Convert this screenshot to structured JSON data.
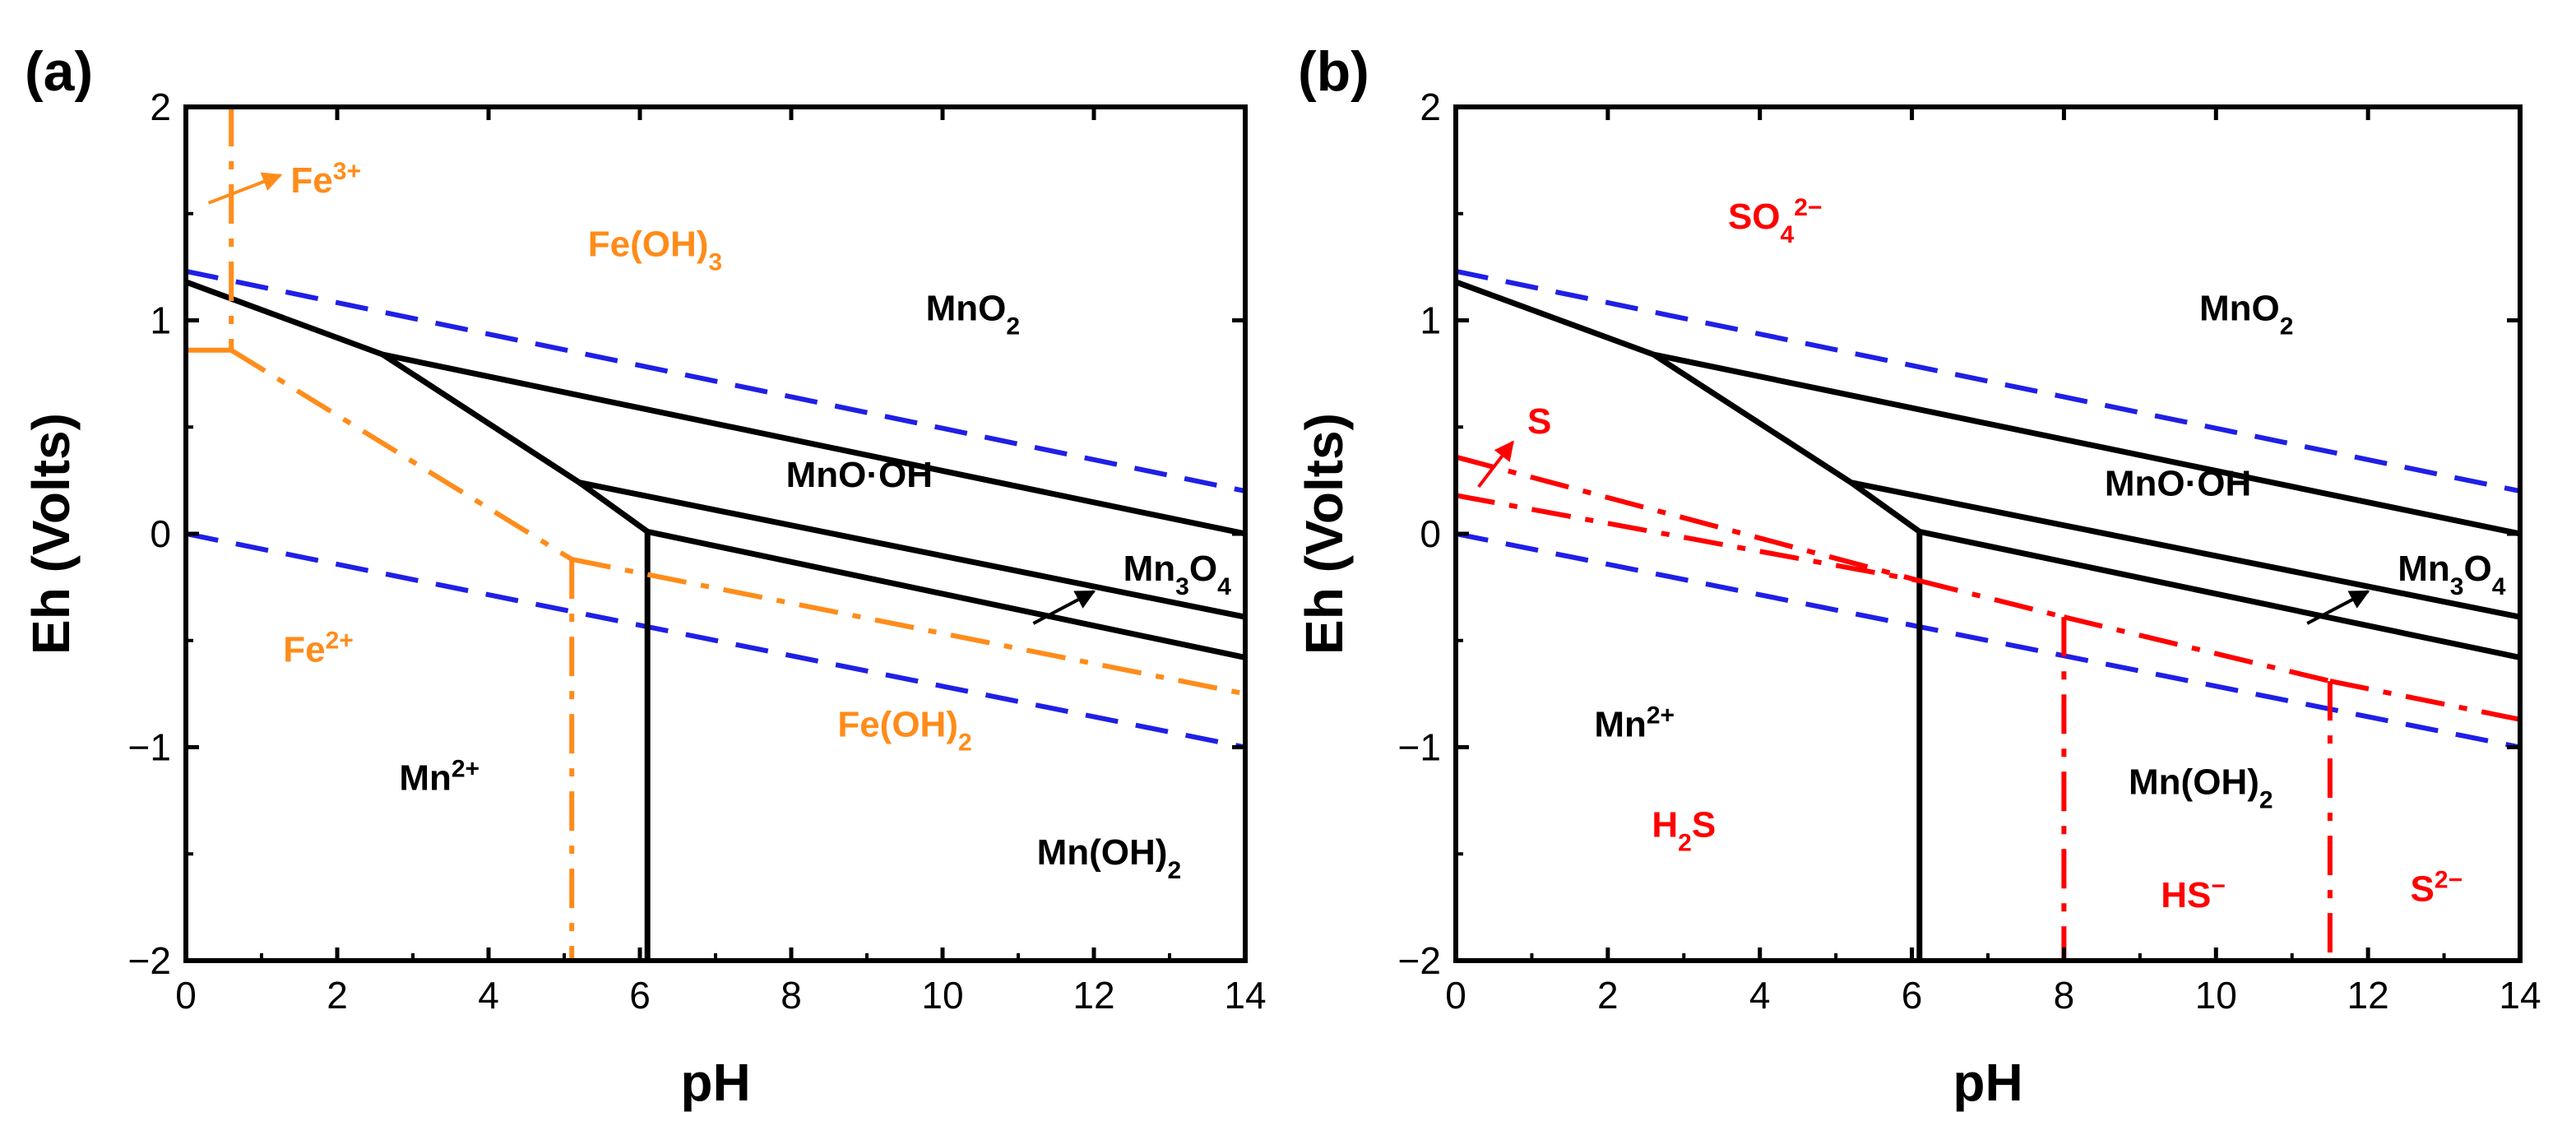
{
  "chart_data": [
    {
      "type": "line",
      "panel_label": "(a)",
      "title": "",
      "xlabel": "pH",
      "ylabel": "Eh (Volts)",
      "xlim": [
        0,
        14
      ],
      "ylim": [
        -2,
        2
      ],
      "x_ticks": [
        0,
        2,
        4,
        6,
        8,
        10,
        12,
        14
      ],
      "y_ticks": [
        -2,
        -1,
        0,
        1,
        2
      ],
      "x_tick_labels": [
        "0",
        "2",
        "4",
        "6",
        "8",
        "10",
        "12",
        "14"
      ],
      "y_tick_labels": [
        "−2",
        "−1",
        "0",
        "1",
        "2"
      ],
      "colors": {
        "mn": "#000000",
        "water": "#1f1fe6",
        "fe": "#ff8c1a",
        "s": "#ff0000"
      },
      "series": [
        {
          "name": "water-upper",
          "style": "dashed",
          "color": "#1f1fe6",
          "points": [
            [
              0,
              1.23
            ],
            [
              14,
              0.2
            ]
          ]
        },
        {
          "name": "water-lower",
          "style": "dashed",
          "color": "#1f1fe6",
          "points": [
            [
              0,
              0.0
            ],
            [
              14,
              -1.0
            ]
          ]
        },
        {
          "name": "MnO2-Mn2+",
          "style": "solid",
          "color": "#000000",
          "points": [
            [
              0,
              1.18
            ],
            [
              2.6,
              0.84
            ]
          ]
        },
        {
          "name": "Mn2+-MnO.OH",
          "style": "solid",
          "color": "#000000",
          "points": [
            [
              2.6,
              0.84
            ],
            [
              5.2,
              0.24
            ]
          ]
        },
        {
          "name": "Mn2+-Mn3O4",
          "style": "solid",
          "color": "#000000",
          "points": [
            [
              5.2,
              0.24
            ],
            [
              6.1,
              0.01
            ]
          ]
        },
        {
          "name": "Mn2+-Mn(OH)2",
          "style": "solid",
          "color": "#000000",
          "points": [
            [
              6.1,
              0.01
            ],
            [
              6.1,
              -2.0
            ]
          ]
        },
        {
          "name": "MnO2-MnO.OH",
          "style": "solid",
          "color": "#000000",
          "points": [
            [
              2.6,
              0.84
            ],
            [
              14,
              0.0
            ]
          ]
        },
        {
          "name": "MnO.OH-Mn3O4",
          "style": "solid",
          "color": "#000000",
          "points": [
            [
              5.2,
              0.24
            ],
            [
              14,
              -0.39
            ]
          ]
        },
        {
          "name": "Mn3O4-Mn(OH)2",
          "style": "solid",
          "color": "#000000",
          "points": [
            [
              6.1,
              0.01
            ],
            [
              14,
              -0.58
            ]
          ]
        },
        {
          "name": "Fe3+-Fe(OH)3 vertical",
          "style": "dashdot",
          "color": "#ff8c1a",
          "points": [
            [
              0.6,
              2.0
            ],
            [
              0.6,
              0.86
            ]
          ]
        },
        {
          "name": "Fe3+-Fe2+",
          "style": "solid",
          "color": "#ff8c1a",
          "points": [
            [
              0,
              0.86
            ],
            [
              0.6,
              0.86
            ]
          ]
        },
        {
          "name": "Fe(OH)3-Fe2+",
          "style": "dashdot",
          "color": "#ff8c1a",
          "points": [
            [
              0.6,
              0.86
            ],
            [
              5.1,
              -0.12
            ]
          ]
        },
        {
          "name": "Fe(OH)3-Fe(OH)2",
          "style": "dashdot",
          "color": "#ff8c1a",
          "points": [
            [
              5.1,
              -0.12
            ],
            [
              14,
              -0.75
            ]
          ]
        },
        {
          "name": "Fe2+-Fe(OH)2",
          "style": "dashdot",
          "color": "#ff8c1a",
          "points": [
            [
              5.1,
              -0.12
            ],
            [
              5.1,
              -2.0
            ]
          ]
        }
      ],
      "region_labels": [
        {
          "text": "Fe",
          "sup": "3+",
          "sub": "",
          "color": "#ff8c1a",
          "x": 1.85,
          "y": 1.6
        },
        {
          "text": "Fe(OH)",
          "sub": "3",
          "sup": "",
          "color": "#ff8c1a",
          "x": 6.2,
          "y": 1.3
        },
        {
          "text": "MnO",
          "sub": "2",
          "sup": "",
          "color": "#000000",
          "x": 10.4,
          "y": 1.0
        },
        {
          "text": "MnO·OH",
          "sub": "",
          "sup": "",
          "color": "#000000",
          "x": 8.9,
          "y": 0.22
        },
        {
          "text": "Mn",
          "sub": "3",
          "sup": "",
          "tail": "O",
          "sub2": "4",
          "color": "#000000",
          "x": 13.1,
          "y": -0.22
        },
        {
          "text": "Fe",
          "sup": "2+",
          "sub": "",
          "color": "#ff8c1a",
          "x": 1.75,
          "y": -0.6
        },
        {
          "text": "Fe(OH)",
          "sub": "2",
          "sup": "",
          "color": "#ff8c1a",
          "x": 9.5,
          "y": -0.95
        },
        {
          "text": "Mn",
          "sup": "2+",
          "sub": "",
          "color": "#000000",
          "x": 3.35,
          "y": -1.2
        },
        {
          "text": "Mn(OH)",
          "sub": "2",
          "sup": "",
          "color": "#000000",
          "x": 12.2,
          "y": -1.55
        }
      ],
      "arrows": [
        {
          "name": "fe3-arrow",
          "color": "#ff8c1a",
          "from": [
            0.3,
            1.55
          ],
          "to": [
            1.25,
            1.68
          ]
        },
        {
          "name": "mn3o4-arrow",
          "color": "#000000",
          "from": [
            11.2,
            -0.42
          ],
          "to": [
            12.0,
            -0.27
          ]
        }
      ]
    },
    {
      "type": "line",
      "panel_label": "(b)",
      "title": "",
      "xlabel": "pH",
      "ylabel": "Eh (Volts)",
      "xlim": [
        0,
        14
      ],
      "ylim": [
        -2,
        2
      ],
      "x_ticks": [
        0,
        2,
        4,
        6,
        8,
        10,
        12,
        14
      ],
      "y_ticks": [
        -2,
        -1,
        0,
        1,
        2
      ],
      "x_tick_labels": [
        "0",
        "2",
        "4",
        "6",
        "8",
        "10",
        "12",
        "14"
      ],
      "y_tick_labels": [
        "−2",
        "−1",
        "0",
        "1",
        "2"
      ],
      "series": [
        {
          "name": "water-upper",
          "style": "dashed",
          "color": "#1f1fe6",
          "points": [
            [
              0,
              1.23
            ],
            [
              14,
              0.2
            ]
          ]
        },
        {
          "name": "water-lower",
          "style": "dashed",
          "color": "#1f1fe6",
          "points": [
            [
              0,
              0.0
            ],
            [
              14,
              -1.0
            ]
          ]
        },
        {
          "name": "MnO2-Mn2+",
          "style": "solid",
          "color": "#000000",
          "points": [
            [
              0,
              1.18
            ],
            [
              2.6,
              0.84
            ]
          ]
        },
        {
          "name": "Mn2+-MnO.OH",
          "style": "solid",
          "color": "#000000",
          "points": [
            [
              2.6,
              0.84
            ],
            [
              5.2,
              0.24
            ]
          ]
        },
        {
          "name": "Mn2+-Mn3O4",
          "style": "solid",
          "color": "#000000",
          "points": [
            [
              5.2,
              0.24
            ],
            [
              6.1,
              0.01
            ]
          ]
        },
        {
          "name": "Mn2+-Mn(OH)2",
          "style": "solid",
          "color": "#000000",
          "points": [
            [
              6.1,
              0.01
            ],
            [
              6.1,
              -2.0
            ]
          ]
        },
        {
          "name": "MnO2-MnO.OH",
          "style": "solid",
          "color": "#000000",
          "points": [
            [
              2.6,
              0.84
            ],
            [
              14,
              0.0
            ]
          ]
        },
        {
          "name": "MnO.OH-Mn3O4",
          "style": "solid",
          "color": "#000000",
          "points": [
            [
              5.2,
              0.24
            ],
            [
              14,
              -0.39
            ]
          ]
        },
        {
          "name": "Mn3O4-Mn(OH)2",
          "style": "solid",
          "color": "#000000",
          "points": [
            [
              6.1,
              0.01
            ],
            [
              14,
              -0.58
            ]
          ]
        },
        {
          "name": "SO4-S",
          "style": "dashdot",
          "color": "#ff0000",
          "points": [
            [
              0,
              0.36
            ],
            [
              6.1,
              -0.22
            ]
          ]
        },
        {
          "name": "S-H2S",
          "style": "dashdot",
          "color": "#ff0000",
          "points": [
            [
              0,
              0.18
            ],
            [
              6.1,
              -0.22
            ]
          ]
        },
        {
          "name": "SO4-H2S",
          "style": "dashdot",
          "color": "#ff0000",
          "points": [
            [
              6.1,
              -0.22
            ],
            [
              8.0,
              -0.39
            ]
          ]
        },
        {
          "name": "SO4-HS-",
          "style": "dashdot",
          "color": "#ff0000",
          "points": [
            [
              8.0,
              -0.39
            ],
            [
              11.5,
              -0.69
            ]
          ]
        },
        {
          "name": "SO4-S2-",
          "style": "dashdot",
          "color": "#ff0000",
          "points": [
            [
              11.5,
              -0.69
            ],
            [
              14,
              -0.87
            ]
          ]
        },
        {
          "name": "H2S-HS-",
          "style": "dashdot",
          "color": "#ff0000",
          "points": [
            [
              8.0,
              -0.39
            ],
            [
              8.0,
              -2.0
            ]
          ]
        },
        {
          "name": "HS--S2-",
          "style": "dashdot",
          "color": "#ff0000",
          "points": [
            [
              11.5,
              -0.69
            ],
            [
              11.5,
              -2.0
            ]
          ]
        }
      ],
      "region_labels": [
        {
          "text": "SO",
          "sub": "4",
          "sup": "2−",
          "color": "#ff0000",
          "x": 4.2,
          "y": 1.43
        },
        {
          "text": "MnO",
          "sub": "2",
          "sup": "",
          "color": "#000000",
          "x": 10.4,
          "y": 1.0
        },
        {
          "text": "S",
          "sub": "",
          "sup": "",
          "color": "#ff0000",
          "x": 1.1,
          "y": 0.47
        },
        {
          "text": "MnO·OH",
          "sub": "",
          "sup": "",
          "color": "#000000",
          "x": 9.5,
          "y": 0.18
        },
        {
          "text": "Mn",
          "sub": "3",
          "sup": "",
          "tail": "O",
          "sub2": "4",
          "color": "#000000",
          "x": 13.1,
          "y": -0.22
        },
        {
          "text": "Mn",
          "sup": "2+",
          "sub": "",
          "color": "#000000",
          "x": 2.35,
          "y": -0.95
        },
        {
          "text": "Mn(OH)",
          "sub": "2",
          "sup": "",
          "color": "#000000",
          "x": 9.8,
          "y": -1.22
        },
        {
          "text": "H",
          "sub": "2",
          "sup": "",
          "tail": "S",
          "color": "#ff0000",
          "x": 3.0,
          "y": -1.42
        },
        {
          "text": "HS",
          "sub": "",
          "sup": "−",
          "color": "#ff0000",
          "x": 9.7,
          "y": -1.75
        },
        {
          "text": "S",
          "sub": "",
          "sup": "2−",
          "color": "#ff0000",
          "x": 12.9,
          "y": -1.72
        }
      ],
      "arrows": [
        {
          "name": "s-arrow",
          "color": "#ff0000",
          "from": [
            0.3,
            0.22
          ],
          "to": [
            0.75,
            0.43
          ]
        },
        {
          "name": "mn3o4-arrow",
          "color": "#000000",
          "from": [
            11.2,
            -0.42
          ],
          "to": [
            12.0,
            -0.27
          ]
        }
      ]
    }
  ]
}
